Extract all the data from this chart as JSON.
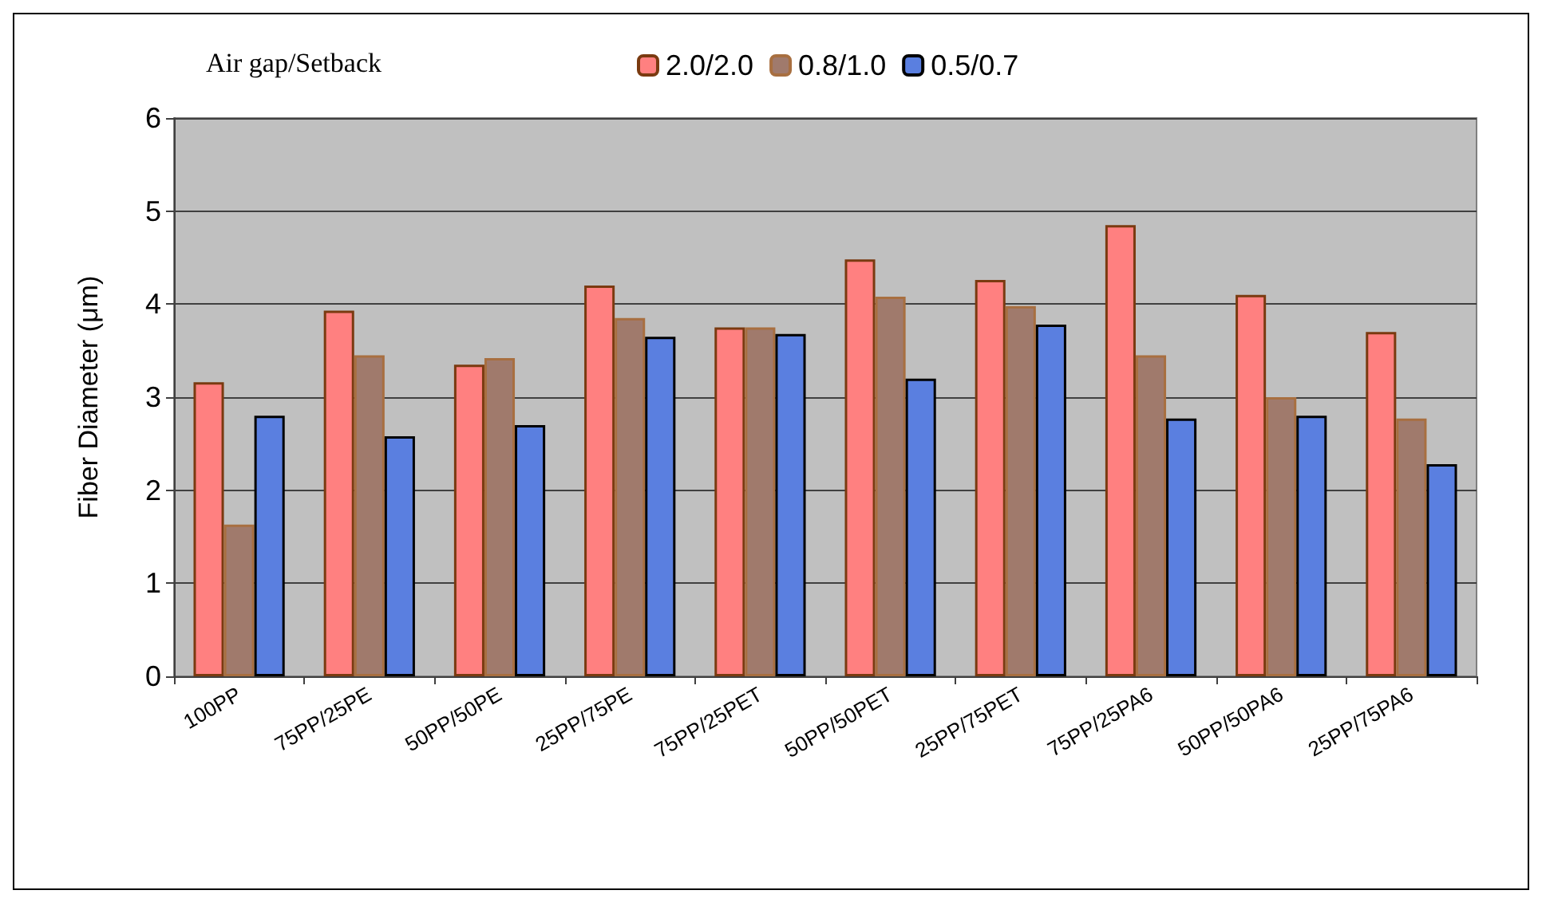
{
  "chart_data": {
    "type": "bar",
    "ylabel": "Fiber Diameter (μm)",
    "legend_title": "Air gap/Setback",
    "categories": [
      "100PP",
      "75PP/25PE",
      "50PP/50PE",
      "25PP/75PE",
      "75PP/25PET",
      "50PP/50PET",
      "25PP/75PET",
      "75PP/25PA6",
      "50PP/50PA6",
      "25PP/75PA6"
    ],
    "series": [
      {
        "name": "2.0/2.0",
        "color": "#ff8080",
        "values": [
          3.16,
          3.93,
          3.35,
          4.2,
          3.75,
          4.48,
          4.26,
          4.85,
          4.1,
          3.7
        ]
      },
      {
        "name": "0.8/1.0",
        "color": "#a07a6c",
        "values": [
          1.63,
          3.45,
          3.42,
          3.85,
          3.75,
          4.08,
          3.98,
          3.45,
          3.0,
          2.77
        ]
      },
      {
        "name": "0.5/0.7",
        "color": "#5a7fe0",
        "values": [
          2.8,
          2.58,
          2.7,
          3.65,
          3.68,
          3.2,
          3.78,
          2.77,
          2.8,
          2.28
        ]
      }
    ],
    "ylim": [
      0,
      6
    ],
    "yticks": [
      0,
      1,
      2,
      3,
      4,
      5,
      6
    ],
    "grid": "y",
    "legend": "top"
  }
}
